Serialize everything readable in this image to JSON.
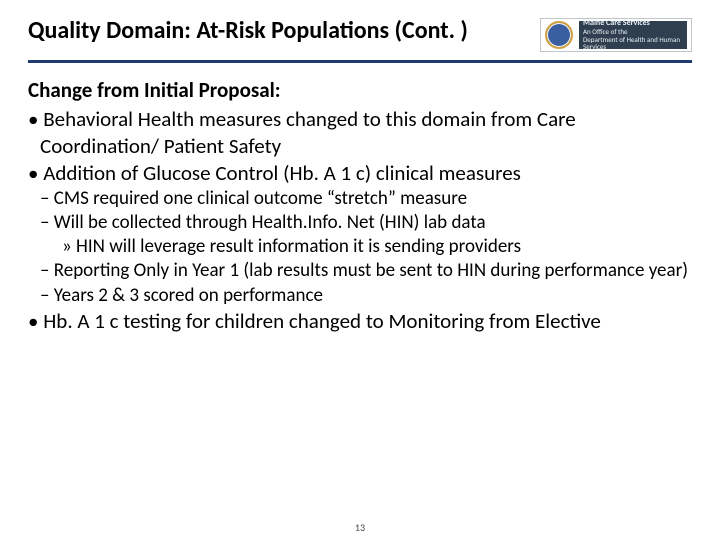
{
  "title": "Quality Domain: At-Risk Populations (Cont. )",
  "logo": {
    "line1": "Maine Care Services",
    "line2": "An Office of the",
    "line3": "Department of Health and Human Services"
  },
  "heading": "Change from Initial Proposal:",
  "bullets": {
    "b1_1": "Behavioral Health measures changed to this domain from Care Coordination/ Patient Safety",
    "b1_2": "Addition of Glucose Control (Hb. A 1 c) clinical measures",
    "b2_1": "CMS required one clinical outcome “stretch” measure",
    "b2_2": "Will be collected through Health.Info. Net (HIN) lab data",
    "b3_1": "HIN will leverage result information it is sending providers",
    "b2_3": "Reporting Only in Year 1 (lab results must be sent to HIN during performance year)",
    "b2_4": "Years 2 & 3 scored on performance",
    "b1_3": "Hb. A 1 c testing for children changed to Monitoring from Elective"
  },
  "page_number": "13",
  "colors": {
    "rule": "#1f3a70",
    "seal_fill": "#3a5fa0",
    "seal_ring": "#d0a040",
    "logo_bg": "#2f3f4f"
  }
}
